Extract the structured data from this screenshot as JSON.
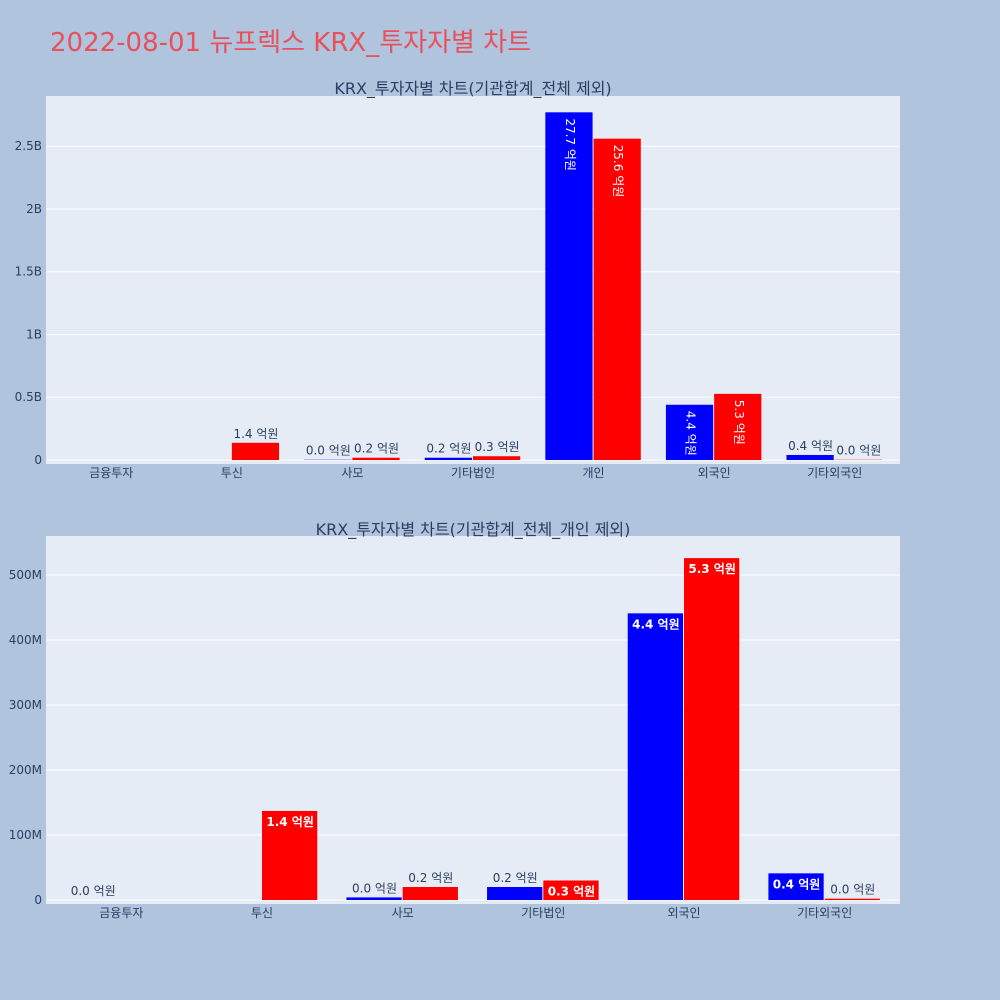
{
  "page": {
    "title": "2022-08-01 뉴프렉스 KRX_투자자별 차트"
  },
  "colors": {
    "background": "#b0c4de",
    "plot_background": "#e5ecf6",
    "series_a": "#0000ff",
    "series_b": "#ff0000",
    "title": "#e8505b"
  },
  "chart_data": [
    {
      "type": "bar",
      "title": "KRX_투자자별 차트(기관합계_전체 제외)",
      "categories": [
        "금융투자",
        "투신",
        "사모",
        "기타법인",
        "개인",
        "외국인",
        "기타외국인"
      ],
      "series": [
        {
          "values": [
            0,
            0,
            2000000,
            18000000,
            2770000000,
            440000000,
            40000000
          ],
          "labels": [
            "",
            "",
            "0.0 억원",
            "0.2 억원",
            "27.7 억원",
            "4.4 억원",
            "0.4 억원"
          ]
        },
        {
          "values": [
            0,
            137000000,
            18000000,
            30000000,
            2560000000,
            527000000,
            2000000
          ],
          "labels": [
            "",
            "1.4 억원",
            "0.2 억원",
            "0.3 억원",
            "25.6 억원",
            "5.3 억원",
            "0.0 억원"
          ]
        }
      ],
      "ylim": [
        0,
        2900000000
      ],
      "yticks": [
        0,
        500000000,
        1000000000,
        1500000000,
        2000000000,
        2500000000
      ],
      "ytick_labels": [
        "0",
        "0.5B",
        "1B",
        "1.5B",
        "2B",
        "2.5B"
      ],
      "grid": true
    },
    {
      "type": "bar",
      "title": "KRX_투자자별 차트(기관합계_전체_개인 제외)",
      "categories": [
        "금융투자",
        "투신",
        "사모",
        "기타법인",
        "외국인",
        "기타외국인"
      ],
      "series": [
        {
          "values": [
            0,
            0,
            4000000,
            20000000,
            441000000,
            41000000
          ],
          "labels": [
            "0.0 억원",
            "",
            "0.0 억원",
            "0.2 억원",
            "4.4 억원",
            "0.4 억원"
          ]
        },
        {
          "values": [
            0,
            137000000,
            20000000,
            30000000,
            526000000,
            2000000
          ],
          "labels": [
            "",
            "1.4 억원",
            "0.2 억원",
            "0.3 억원",
            "5.3 억원",
            "0.0 억원"
          ]
        }
      ],
      "ylim": [
        0,
        560000000
      ],
      "yticks": [
        0,
        100000000,
        200000000,
        300000000,
        400000000,
        500000000
      ],
      "ytick_labels": [
        "0",
        "100M",
        "200M",
        "300M",
        "400M",
        "500M"
      ],
      "grid": true
    }
  ]
}
